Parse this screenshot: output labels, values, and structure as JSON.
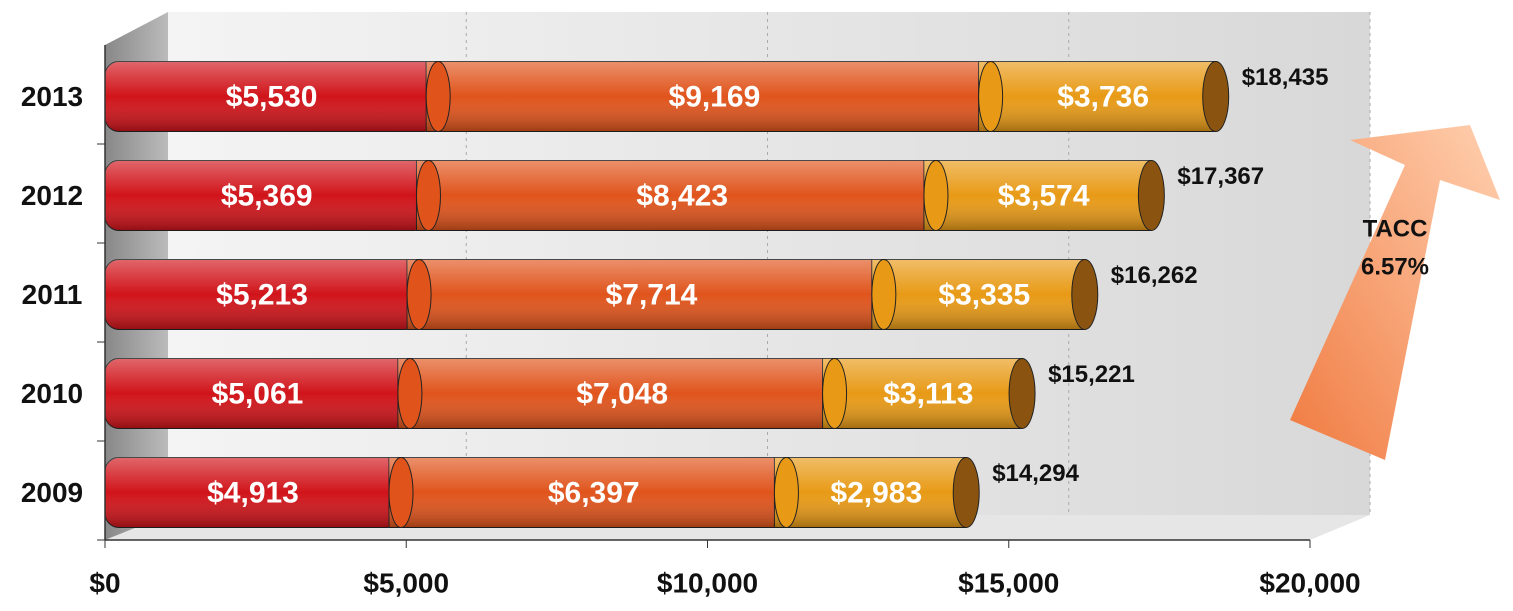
{
  "chart_data": {
    "type": "stacked-bar-horizontal",
    "categories": [
      "2009",
      "2010",
      "2011",
      "2012",
      "2013"
    ],
    "series": [
      {
        "color": "#d0141a",
        "values": [
          4913,
          5061,
          5213,
          5369,
          5530
        ],
        "value_labels": [
          "$4,913",
          "$5,061",
          "$5,213",
          "$5,369",
          "$5,530"
        ]
      },
      {
        "color": "#e0541c",
        "values": [
          6397,
          7048,
          7714,
          8423,
          9169
        ],
        "value_labels": [
          "$6,397",
          "$7,048",
          "$7,714",
          "$8,423",
          "$9,169"
        ]
      },
      {
        "color": "#e89a16",
        "values": [
          2983,
          3113,
          3335,
          3574,
          3736
        ],
        "value_labels": [
          "$2,983",
          "$3,113",
          "$3,335",
          "$3,574",
          "$3,736"
        ]
      }
    ],
    "totals": [
      14294,
      15221,
      16262,
      17367,
      18435
    ],
    "total_labels": [
      "$14,294",
      "$15,221",
      "$16,262",
      "$17,367",
      "$18,435"
    ],
    "annotation": [
      "TACC",
      "6.57%"
    ],
    "xlim": [
      0,
      20000
    ],
    "xticks": [
      {
        "value": 0,
        "label": "$0"
      },
      {
        "value": 5000,
        "label": "$5,000"
      },
      {
        "value": 10000,
        "label": "$10,000"
      },
      {
        "value": 15000,
        "label": "$15,000"
      },
      {
        "value": 20000,
        "label": "$20,000"
      }
    ],
    "grid": true
  }
}
